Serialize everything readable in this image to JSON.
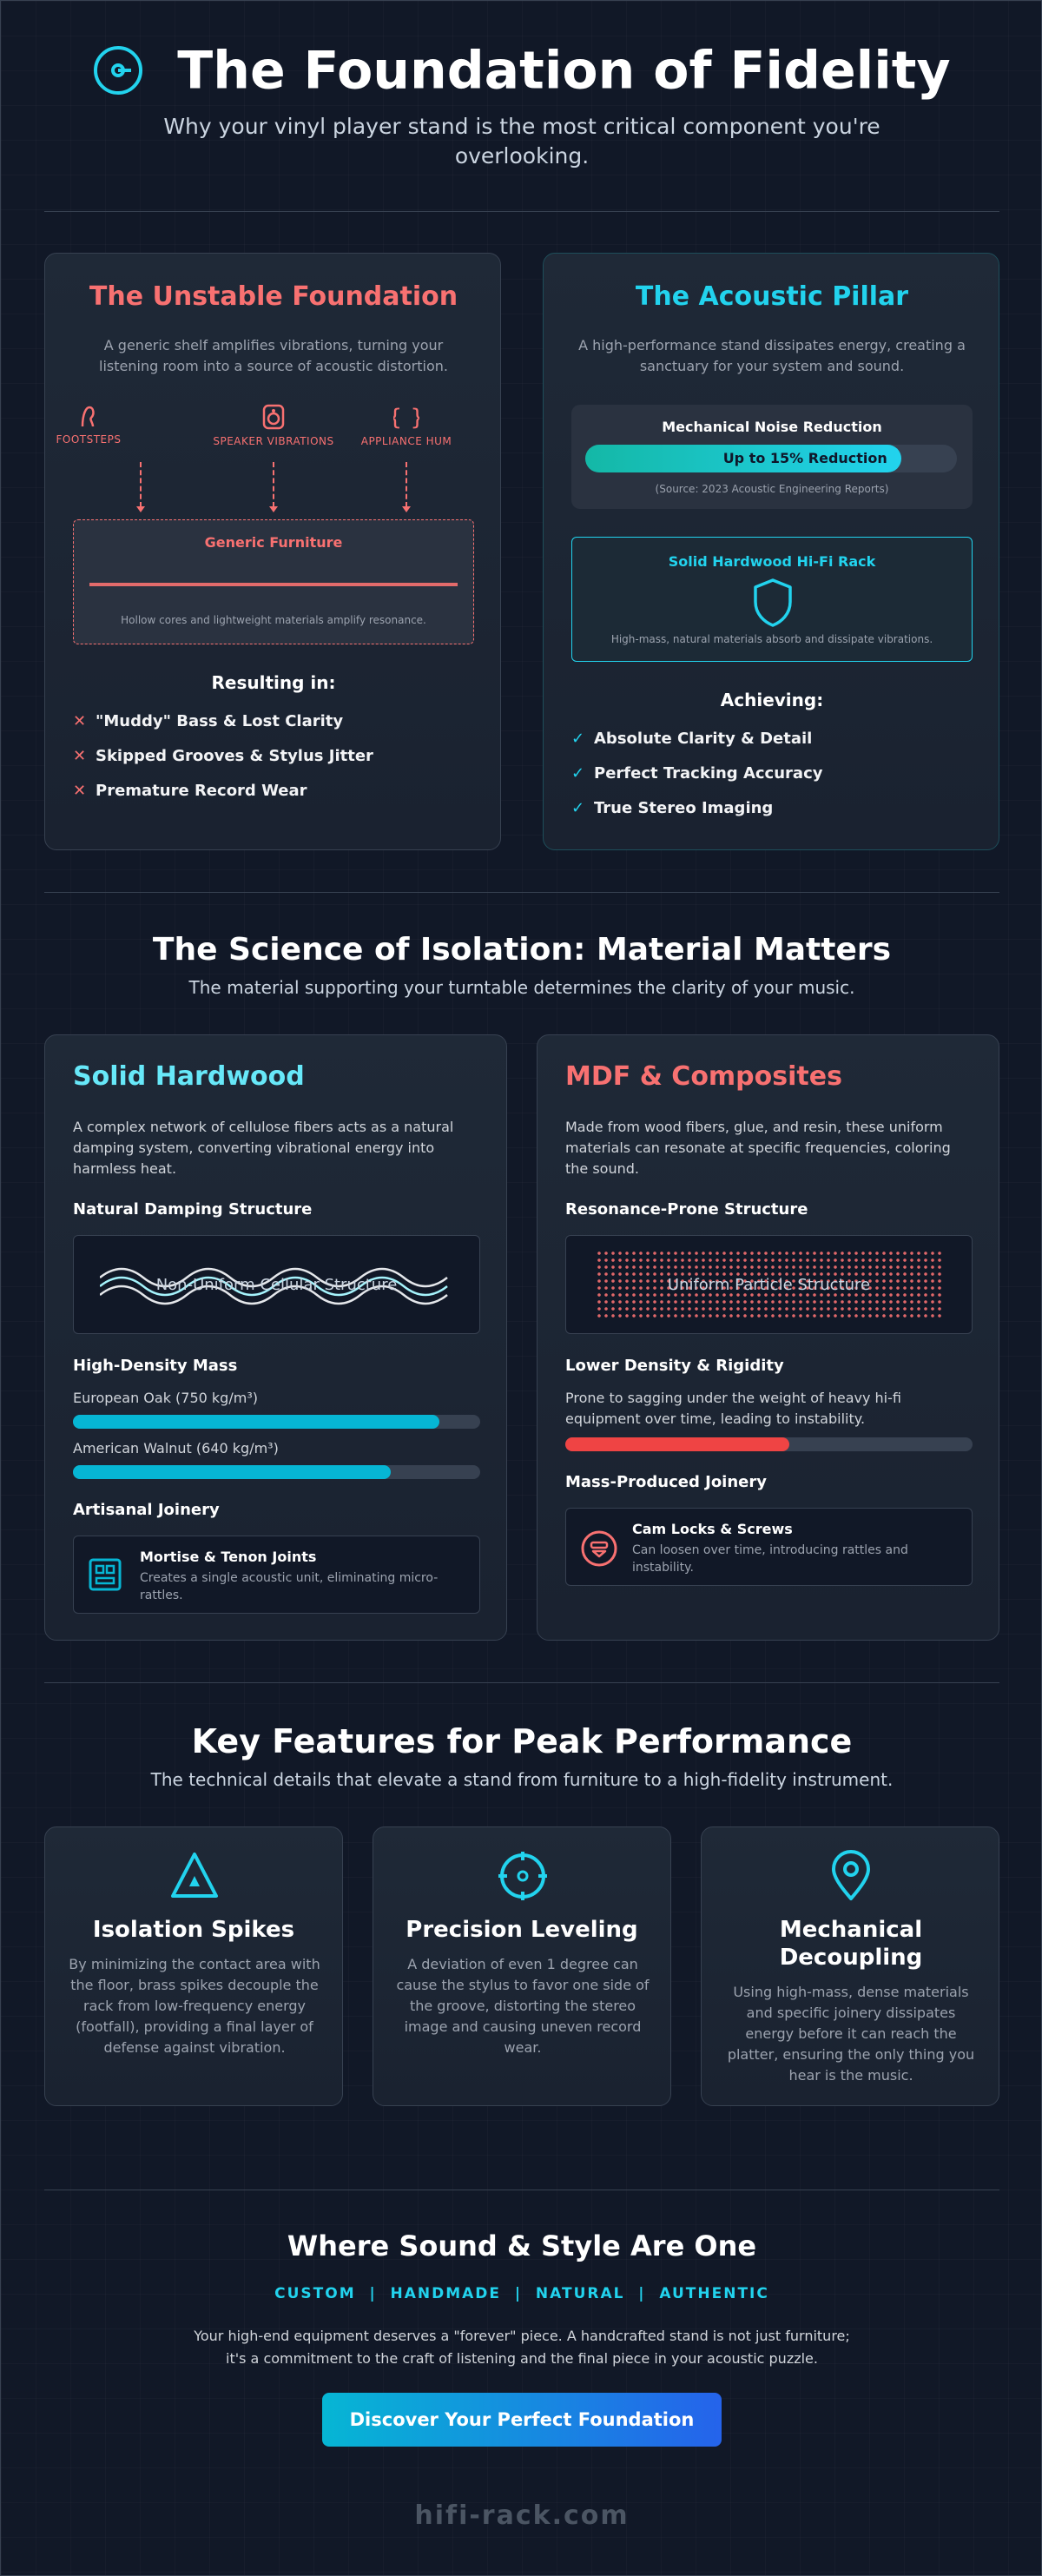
{
  "header": {
    "title": "The Foundation of Fidelity",
    "subtitle": "Why your vinyl player stand is the most critical component you're overlooking."
  },
  "unstable": {
    "title": "The Unstable Foundation",
    "description": "A generic shelf amplifies vibrations, turning your listening room into a source of acoustic distortion.",
    "sources": [
      "FOOTSTEPS",
      "SPEAKER VIBRATIONS",
      "APPLIANCE HUM"
    ],
    "furniture_label": "Generic Furniture",
    "furniture_note": "Hollow cores and lightweight materials amplify resonance.",
    "results_heading": "Resulting in:",
    "results": [
      "\"Muddy\" Bass & Lost Clarity",
      "Skipped Grooves & Stylus Jitter",
      "Premature Record Wear"
    ]
  },
  "pillar": {
    "title": "The Acoustic Pillar",
    "description": "A high-performance stand dissipates energy, creating a sanctuary for your system and sound.",
    "noise_heading": "Mechanical Noise Reduction",
    "noise_value_label": "Up to 15% Reduction",
    "noise_fill": 0.85,
    "noise_source": "(Source: 2023 Acoustic Engineering Reports)",
    "rack_label": "Solid Hardwood Hi-Fi Rack",
    "rack_note": "High-mass, natural materials absorb and dissipate vibrations.",
    "achieving_heading": "Achieving:",
    "achieving": [
      "Absolute Clarity & Detail",
      "Perfect Tracking Accuracy",
      "True Stereo Imaging"
    ]
  },
  "science": {
    "title": "The Science of Isolation: Material Matters",
    "subtitle": "The material supporting your turntable determines the clarity of your music.",
    "hardwood": {
      "title": "Solid Hardwood",
      "description": "A complex network of cellulose fibers acts as a natural damping system, converting vibrational energy into harmless heat.",
      "structure_heading": "Natural Damping Structure",
      "structure_label": "Non-Uniform Cellular Structure",
      "mass_heading": "High-Density Mass",
      "woods": [
        {
          "label": "European Oak (750 kg/m³)",
          "fill": 0.9
        },
        {
          "label": "American Walnut (640 kg/m³)",
          "fill": 0.78
        }
      ],
      "joinery_heading": "Artisanal Joinery",
      "joinery_title": "Mortise & Tenon Joints",
      "joinery_desc": "Creates a single acoustic unit, eliminating micro-rattles."
    },
    "mdf": {
      "title": "MDF & Composites",
      "description": "Made from wood fibers, glue, and resin, these uniform materials can resonate at specific frequencies, coloring the sound.",
      "structure_heading": "Resonance-Prone Structure",
      "structure_label": "Uniform Particle Structure",
      "density_heading": "Lower Density & Rigidity",
      "density_desc": "Prone to sagging under the weight of heavy hi-fi equipment over time, leading to instability.",
      "density_fill": 0.55,
      "joinery_heading": "Mass-Produced Joinery",
      "joinery_title": "Cam Locks & Screws",
      "joinery_desc": "Can loosen over time, introducing rattles and instability."
    }
  },
  "features": {
    "title": "Key Features for Peak Performance",
    "subtitle": "The technical details that elevate a stand from furniture to a high-fidelity instrument.",
    "items": [
      {
        "icon": "triangle-spike-icon",
        "title": "Isolation Spikes",
        "desc": "By minimizing the contact area with the floor, brass spikes decouple the rack from low-frequency energy (footfall), providing a final layer of defense against vibration."
      },
      {
        "icon": "crosshair-level-icon",
        "title": "Precision Leveling",
        "desc": "A deviation of even 1 degree can cause the stylus to favor one side of the groove, distorting the stereo image and causing uneven record wear."
      },
      {
        "icon": "map-pin-icon",
        "title": "Mechanical Decoupling",
        "desc": "Using high-mass, dense materials and specific joinery dissipates energy before it can reach the platter, ensuring the only thing you hear is the music."
      }
    ]
  },
  "closing": {
    "title": "Where Sound & Style Are One",
    "tags": "CUSTOM  |  HANDMADE  |  NATURAL  |  AUTHENTIC",
    "text": "Your high-end equipment deserves a \"forever\" piece. A handcrafted stand is not just furniture; it's a commitment to the craft of listening and the final piece in your acoustic puzzle.",
    "cta": "Discover Your Perfect Foundation",
    "footer": "hifi-rack.com"
  },
  "colors": {
    "accent_cyan": "#22d3ee",
    "accent_red": "#f87171",
    "background": "#111827"
  }
}
